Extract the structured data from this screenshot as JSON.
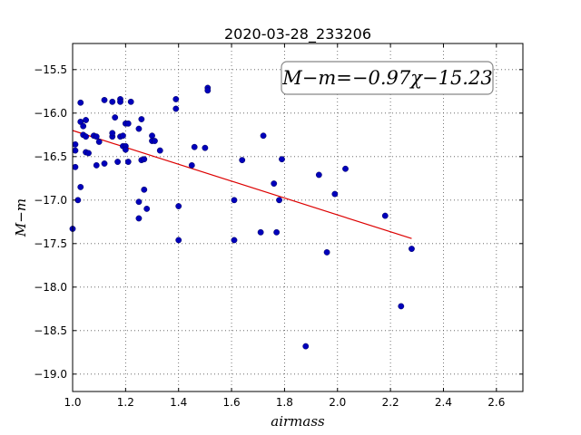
{
  "chart_data": {
    "type": "scatter",
    "title": "2020-03-28_233206",
    "xlabel": "airmass",
    "ylabel": "M−m",
    "xlim": [
      1.0,
      2.7
    ],
    "ylim": [
      -19.2,
      -15.2
    ],
    "xticks": [
      1.0,
      1.2,
      1.4,
      1.6,
      1.8,
      2.0,
      2.2,
      2.4,
      2.6
    ],
    "xtick_labels": [
      "1.0",
      "1.2",
      "1.4",
      "1.6",
      "1.8",
      "2.0",
      "2.2",
      "2.4",
      "2.6"
    ],
    "yticks": [
      -15.5,
      -16.0,
      -16.5,
      -17.0,
      -17.5,
      -18.0,
      -18.5,
      -19.0
    ],
    "ytick_labels": [
      "−15.5",
      "−16.0",
      "−16.5",
      "−17.0",
      "−17.5",
      "−18.0",
      "−18.5",
      "−19.0"
    ],
    "grid": true,
    "annotation": "M−m=−0.97χ−15.23",
    "point_color": "#0000bb",
    "fit_color": "#dd0000",
    "fit_line": {
      "slope": -0.97,
      "intercept": -15.23,
      "x_range": [
        1.0,
        2.28
      ]
    },
    "points": [
      [
        1.0,
        -17.33
      ],
      [
        1.01,
        -16.62
      ],
      [
        1.01,
        -16.43
      ],
      [
        1.01,
        -16.36
      ],
      [
        1.02,
        -17.0
      ],
      [
        1.03,
        -16.85
      ],
      [
        1.03,
        -16.1
      ],
      [
        1.03,
        -15.88
      ],
      [
        1.04,
        -16.25
      ],
      [
        1.04,
        -16.15
      ],
      [
        1.05,
        -16.45
      ],
      [
        1.05,
        -16.27
      ],
      [
        1.05,
        -16.08
      ],
      [
        1.06,
        -16.46
      ],
      [
        1.08,
        -16.26
      ],
      [
        1.09,
        -16.27
      ],
      [
        1.09,
        -16.6
      ],
      [
        1.1,
        -16.33
      ],
      [
        1.12,
        -15.85
      ],
      [
        1.12,
        -16.58
      ],
      [
        1.15,
        -16.27
      ],
      [
        1.15,
        -15.87
      ],
      [
        1.15,
        -16.23
      ],
      [
        1.16,
        -16.05
      ],
      [
        1.17,
        -16.56
      ],
      [
        1.18,
        -15.84
      ],
      [
        1.18,
        -16.27
      ],
      [
        1.18,
        -15.87
      ],
      [
        1.19,
        -16.38
      ],
      [
        1.19,
        -16.26
      ],
      [
        1.2,
        -16.12
      ],
      [
        1.2,
        -16.38
      ],
      [
        1.2,
        -16.42
      ],
      [
        1.21,
        -16.12
      ],
      [
        1.21,
        -16.56
      ],
      [
        1.22,
        -15.87
      ],
      [
        1.25,
        -17.02
      ],
      [
        1.25,
        -16.18
      ],
      [
        1.25,
        -17.21
      ],
      [
        1.26,
        -16.54
      ],
      [
        1.26,
        -16.07
      ],
      [
        1.27,
        -16.53
      ],
      [
        1.27,
        -16.88
      ],
      [
        1.28,
        -17.1
      ],
      [
        1.3,
        -16.26
      ],
      [
        1.3,
        -16.32
      ],
      [
        1.31,
        -16.32
      ],
      [
        1.33,
        -16.43
      ],
      [
        1.39,
        -15.84
      ],
      [
        1.39,
        -15.95
      ],
      [
        1.4,
        -17.46
      ],
      [
        1.4,
        -17.07
      ],
      [
        1.45,
        -16.6
      ],
      [
        1.46,
        -16.39
      ],
      [
        1.5,
        -16.4
      ],
      [
        1.51,
        -15.71
      ],
      [
        1.51,
        -15.74
      ],
      [
        1.61,
        -17.0
      ],
      [
        1.61,
        -17.46
      ],
      [
        1.64,
        -16.54
      ],
      [
        1.71,
        -17.37
      ],
      [
        1.72,
        -16.26
      ],
      [
        1.76,
        -16.81
      ],
      [
        1.77,
        -17.37
      ],
      [
        1.78,
        -17.0
      ],
      [
        1.79,
        -16.53
      ],
      [
        1.88,
        -18.68
      ],
      [
        1.93,
        -16.71
      ],
      [
        1.96,
        -17.6
      ],
      [
        1.99,
        -16.93
      ],
      [
        2.03,
        -16.64
      ],
      [
        2.18,
        -17.18
      ],
      [
        2.24,
        -18.22
      ],
      [
        2.28,
        -17.56
      ]
    ]
  }
}
